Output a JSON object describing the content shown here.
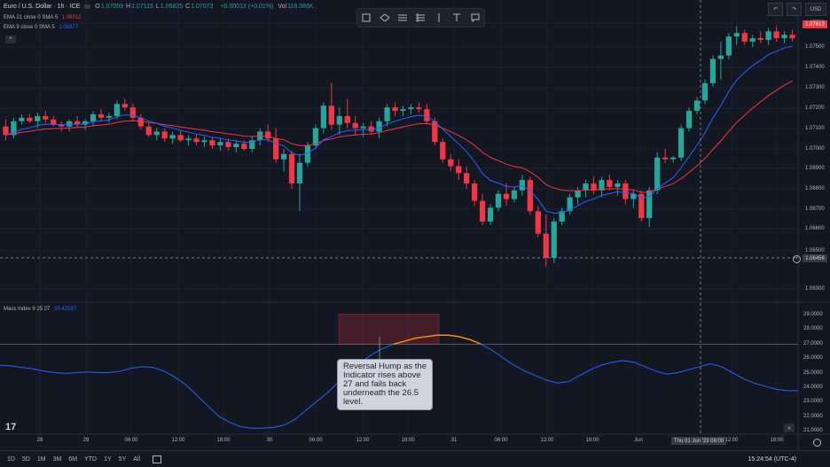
{
  "symbol": {
    "title": "Euro / U.S. Dollar · 1h · ICE",
    "ohlc": [
      {
        "k": "O",
        "v": "1.07059"
      },
      {
        "k": "H",
        "v": "1.07115"
      },
      {
        "k": "L",
        "v": "1.06825"
      },
      {
        "k": "C",
        "v": "1.07073"
      }
    ],
    "change": "+0.00013 (+0.01%)",
    "vol_label": "Vol",
    "vol_value": "116.386K"
  },
  "indicators": {
    "ema21": {
      "label": "EMA 21 close 0 SMA 5",
      "value": "1.06912",
      "color": "#f23645"
    },
    "ema9": {
      "label": "EMA 9 close 0 SMA 5",
      "value": "1.06977",
      "color": "#2962ff"
    },
    "mass": {
      "label": "Mass Index 9 25 27",
      "value": "25.42587",
      "color": "#2962ff"
    }
  },
  "toolbar_icons": [
    "rectangle-icon",
    "ellipse-icon",
    "fib-icon",
    "parallel-channel-icon",
    "vertical-line-icon",
    "text-icon",
    "callout-icon"
  ],
  "currency": "USD",
  "price_axis": {
    "labels": [
      "1.07750",
      "1.07500",
      "1.07400",
      "1.07300",
      "1.07200",
      "1.07100",
      "1.07000",
      "1.06900",
      "1.06800",
      "1.06700",
      "1.06600",
      "1.06500",
      "1.06300"
    ],
    "current_price": "1.07613",
    "cursor_price": "1.06456"
  },
  "indicator_axis": {
    "labels": [
      "29.0000",
      "28.0000",
      "27.0000",
      "26.0000",
      "25.0000",
      "24.0000",
      "23.0000",
      "22.0000",
      "21.0000"
    ]
  },
  "time_axis": {
    "labels": [
      "28",
      "29",
      "06:00",
      "12:00",
      "18:00",
      "30",
      "06:00",
      "12:00",
      "18:00",
      "31",
      "06:00",
      "12:00",
      "18:00",
      "Jun",
      "12:00",
      "18:00"
    ],
    "cursor_time": "Thu 01 Jun '23  08:00"
  },
  "annotation": "Reversal Hump as the Indicator rises above 27 and fails back underneath the 26.5 level.",
  "bottom_bar": {
    "ranges": [
      "1D",
      "5D",
      "1M",
      "3M",
      "6M",
      "YTD",
      "1Y",
      "5Y",
      "All"
    ],
    "clock": "15:24:54 (UTC-4)"
  },
  "logo": "17",
  "colors": {
    "up": "#26a69a",
    "down": "#f23645",
    "ema21": "#f23645",
    "ema9": "#2962ff",
    "mass": "#2962ff",
    "hump": "#ff9800"
  },
  "chart_data": {
    "type": "candlestick",
    "interval": "1h",
    "note_values": "estimated OHLC from chart",
    "ylim": [
      1.0625,
      1.079
    ],
    "candles": [
      [
        1.0721,
        1.0725,
        1.0713,
        1.0716
      ],
      [
        1.0716,
        1.0726,
        1.0714,
        1.0724
      ],
      [
        1.0724,
        1.0728,
        1.0722,
        1.0726
      ],
      [
        1.0726,
        1.0728,
        1.0723,
        1.0724
      ],
      [
        1.0724,
        1.0729,
        1.072,
        1.0727
      ],
      [
        1.0727,
        1.073,
        1.0723,
        1.0725
      ],
      [
        1.0725,
        1.0727,
        1.0721,
        1.0722
      ],
      [
        1.0722,
        1.0724,
        1.0718,
        1.0721
      ],
      [
        1.0721,
        1.0725,
        1.0718,
        1.0724
      ],
      [
        1.0724,
        1.0727,
        1.072,
        1.0722
      ],
      [
        1.0722,
        1.0725,
        1.0719,
        1.0724
      ],
      [
        1.0724,
        1.073,
        1.0721,
        1.0728
      ],
      [
        1.0728,
        1.0731,
        1.0724,
        1.0726
      ],
      [
        1.0726,
        1.0729,
        1.0723,
        1.0727
      ],
      [
        1.0727,
        1.0736,
        1.0725,
        1.0734
      ],
      [
        1.0734,
        1.0737,
        1.073,
        1.0732
      ],
      [
        1.0732,
        1.0734,
        1.0724,
        1.0726
      ],
      [
        1.0726,
        1.0728,
        1.0719,
        1.0721
      ],
      [
        1.0721,
        1.0723,
        1.0715,
        1.0716
      ],
      [
        1.0716,
        1.072,
        1.0713,
        1.0718
      ],
      [
        1.0718,
        1.072,
        1.0712,
        1.0714
      ],
      [
        1.0714,
        1.0718,
        1.0711,
        1.0716
      ],
      [
        1.0716,
        1.0719,
        1.0712,
        1.0713
      ],
      [
        1.0713,
        1.0716,
        1.071,
        1.0714
      ],
      [
        1.0714,
        1.0716,
        1.071,
        1.0712
      ],
      [
        1.0712,
        1.0715,
        1.0709,
        1.0713
      ],
      [
        1.0713,
        1.0715,
        1.0708,
        1.071
      ],
      [
        1.071,
        1.0714,
        1.0707,
        1.0712
      ],
      [
        1.0712,
        1.0714,
        1.0707,
        1.0709
      ],
      [
        1.0709,
        1.0713,
        1.0706,
        1.0711
      ],
      [
        1.0711,
        1.0713,
        1.0707,
        1.0708
      ],
      [
        1.0708,
        1.0715,
        1.0706,
        1.0713
      ],
      [
        1.0713,
        1.072,
        1.071,
        1.0718
      ],
      [
        1.0718,
        1.0722,
        1.0712,
        1.0714
      ],
      [
        1.0714,
        1.072,
        1.07,
        1.0702
      ],
      [
        1.0702,
        1.0708,
        1.0695,
        1.0705
      ],
      [
        1.0705,
        1.0707,
        1.0685,
        1.0688
      ],
      [
        1.0688,
        1.0705,
        1.0672,
        1.07
      ],
      [
        1.07,
        1.0712,
        1.0698,
        1.071
      ],
      [
        1.071,
        1.0722,
        1.0708,
        1.072
      ],
      [
        1.072,
        1.0735,
        1.0717,
        1.0733
      ],
      [
        1.0733,
        1.0746,
        1.0719,
        1.0722
      ],
      [
        1.0722,
        1.0732,
        1.0716,
        1.0727
      ],
      [
        1.0727,
        1.0737,
        1.072,
        1.0723
      ],
      [
        1.0723,
        1.0727,
        1.0716,
        1.072
      ],
      [
        1.072,
        1.0723,
        1.0715,
        1.0721
      ],
      [
        1.0721,
        1.0724,
        1.0716,
        1.0718
      ],
      [
        1.0718,
        1.0726,
        1.0714,
        1.0724
      ],
      [
        1.0724,
        1.0734,
        1.0721,
        1.0732
      ],
      [
        1.0732,
        1.0735,
        1.0727,
        1.073
      ],
      [
        1.073,
        1.0733,
        1.0727,
        1.0731
      ],
      [
        1.0731,
        1.0734,
        1.0728,
        1.0732
      ],
      [
        1.0732,
        1.0735,
        1.0729,
        1.0731
      ],
      [
        1.0731,
        1.0734,
        1.0722,
        1.0724
      ],
      [
        1.0724,
        1.0726,
        1.071,
        1.0712
      ],
      [
        1.0712,
        1.0714,
        1.07,
        1.0702
      ],
      [
        1.0702,
        1.0705,
        1.0695,
        1.0698
      ],
      [
        1.0698,
        1.0702,
        1.069,
        1.0694
      ],
      [
        1.0694,
        1.0698,
        1.0685,
        1.0688
      ],
      [
        1.0688,
        1.069,
        1.0675,
        1.0678
      ],
      [
        1.0678,
        1.0682,
        1.0664,
        1.0666
      ],
      [
        1.0666,
        1.0676,
        1.0664,
        1.0674
      ],
      [
        1.0674,
        1.0684,
        1.0672,
        1.0682
      ],
      [
        1.0682,
        1.0688,
        1.0675,
        1.0679
      ],
      [
        1.0679,
        1.0686,
        1.0677,
        1.0684
      ],
      [
        1.0684,
        1.0693,
        1.0681,
        1.069
      ],
      [
        1.069,
        1.0692,
        1.067,
        1.0672
      ],
      [
        1.0672,
        1.0675,
        1.0657,
        1.0659
      ],
      [
        1.0659,
        1.067,
        1.064,
        1.0645
      ],
      [
        1.0645,
        1.0668,
        1.0642,
        1.0666
      ],
      [
        1.0666,
        1.0674,
        1.0664,
        1.0672
      ],
      [
        1.0672,
        1.0682,
        1.067,
        1.068
      ],
      [
        1.068,
        1.0686,
        1.0676,
        1.0684
      ],
      [
        1.0684,
        1.069,
        1.068,
        1.0688
      ],
      [
        1.0688,
        1.0692,
        1.0682,
        1.0684
      ],
      [
        1.0684,
        1.0692,
        1.068,
        1.069
      ],
      [
        1.069,
        1.0693,
        1.0684,
        1.0686
      ],
      [
        1.0686,
        1.069,
        1.0681,
        1.0688
      ],
      [
        1.0688,
        1.069,
        1.0676,
        1.0679
      ],
      [
        1.0679,
        1.0684,
        1.0674,
        1.0682
      ],
      [
        1.0682,
        1.0684,
        1.0666,
        1.0668
      ],
      [
        1.0668,
        1.0686,
        1.0663,
        1.0684
      ],
      [
        1.0684,
        1.0706,
        1.0682,
        1.0703
      ],
      [
        1.0703,
        1.0708,
        1.07,
        1.0702
      ],
      [
        1.0702,
        1.0704,
        1.07,
        1.0703
      ],
      [
        1.0703,
        1.0722,
        1.0701,
        1.072
      ],
      [
        1.072,
        1.0732,
        1.0718,
        1.073
      ],
      [
        1.073,
        1.0738,
        1.0728,
        1.0736
      ],
      [
        1.0736,
        1.0748,
        1.0734,
        1.0746
      ],
      [
        1.0746,
        1.0762,
        1.0744,
        1.076
      ],
      [
        1.076,
        1.077,
        1.0748,
        1.0762
      ],
      [
        1.0762,
        1.0775,
        1.076,
        1.0773
      ],
      [
        1.0773,
        1.0779,
        1.0768,
        1.0775
      ],
      [
        1.0775,
        1.0777,
        1.0768,
        1.077
      ],
      [
        1.077,
        1.0774,
        1.0767,
        1.0772
      ],
      [
        1.0772,
        1.0776,
        1.0769,
        1.0771
      ],
      [
        1.0771,
        1.0778,
        1.0768,
        1.0776
      ],
      [
        1.0776,
        1.0779,
        1.077,
        1.0772
      ],
      [
        1.0772,
        1.0776,
        1.0769,
        1.0774
      ],
      [
        1.0774,
        1.0777,
        1.077,
        1.0772
      ]
    ],
    "mass_index": [
      25.6,
      25.55,
      25.45,
      25.35,
      25.2,
      25.1,
      25.05,
      25.1,
      25.15,
      25.1,
      25.1,
      25.2,
      25.4,
      25.5,
      25.45,
      25.2,
      24.8,
      24.3,
      23.6,
      22.9,
      22.2,
      21.8,
      21.5,
      21.4,
      21.4,
      21.45,
      21.6,
      22.0,
      22.6,
      23.2,
      23.8,
      24.5,
      25.2,
      25.8,
      26.3,
      26.7,
      27.0,
      27.2,
      27.4,
      27.5,
      27.6,
      27.6,
      27.5,
      27.3,
      27.0,
      26.6,
      26.1,
      25.6,
      25.2,
      24.9,
      24.6,
      24.4,
      24.5,
      24.9,
      25.3,
      25.6,
      25.8,
      25.9,
      25.8,
      25.5,
      25.2,
      25.0,
      25.1,
      25.3,
      25.5,
      25.7,
      25.5,
      25.1,
      24.7,
      24.4,
      24.2,
      24.0,
      23.9,
      23.9
    ],
    "mass_ylim": [
      21,
      29.5
    ]
  }
}
